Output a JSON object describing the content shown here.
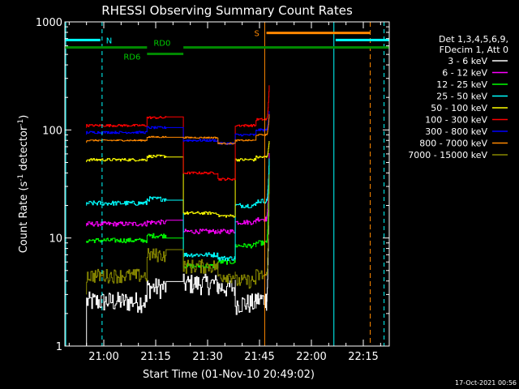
{
  "chart_data": {
    "type": "line",
    "title": "RHESSI Observing Summary Count Rates",
    "xlabel": "Start Time (01-Nov-10 20:49:02)",
    "ylabel_main": "Count Rate (s",
    "ylabel_sup": "-1",
    "ylabel_rest": " detector",
    "ylabel_sup2": "-1",
    "ylabel_end": ")",
    "y_scale": "log",
    "ylim": [
      1,
      1000
    ],
    "yticks": [
      {
        "v": 1,
        "label": "1"
      },
      {
        "v": 10,
        "label": "10"
      },
      {
        "v": 100,
        "label": "100"
      },
      {
        "v": 1000,
        "label": "1000"
      }
    ],
    "xlim": [
      -0.25,
      93.5
    ],
    "xticks": [
      {
        "t": 11,
        "label": "21:00"
      },
      {
        "t": 26,
        "label": "21:15"
      },
      {
        "t": 41,
        "label": "21:30"
      },
      {
        "t": 56,
        "label": "21:45"
      },
      {
        "t": 71,
        "label": "22:00"
      },
      {
        "t": 86,
        "label": "22:15"
      }
    ],
    "x_minor_step": 5,
    "timestamp": "17-Oct-2021 00:56",
    "legend_header": [
      "Det 1,3,4,5,6,9,",
      "FDecim 1, Att 0"
    ],
    "legend_position": "right",
    "segments": [
      [
        6.0,
        23.5
      ],
      [
        23.5,
        29.0
      ],
      [
        34.0,
        44.0
      ],
      [
        44.0,
        49.0
      ],
      [
        49.0,
        55.0
      ],
      [
        55.0,
        58.0
      ]
    ],
    "series": [
      {
        "name": "3 - 6 keV",
        "color": "#ffffff",
        "levels": [
          2.6,
          3.5,
          3.8,
          3.5,
          2.5,
          2.7
        ],
        "noise": 0.22,
        "peak": 45,
        "start": 1
      },
      {
        "name": "6 - 12 keV",
        "color": "#ff00ff",
        "levels": [
          13.5,
          14,
          11.5,
          11.5,
          14,
          15
        ],
        "noise": 0.05,
        "peak": 60
      },
      {
        "name": "12 - 25 keV",
        "color": "#00ff00",
        "levels": [
          9.5,
          10.5,
          5.5,
          6,
          8.5,
          9
        ],
        "noise": 0.05,
        "peak": 50
      },
      {
        "name": "25 - 50 keV",
        "color": "#00ffff",
        "levels": [
          21,
          23,
          7,
          6.5,
          20,
          22
        ],
        "noise": 0.05,
        "peak": 55
      },
      {
        "name": "50 - 100 keV",
        "color": "#ffff00",
        "levels": [
          53,
          57,
          17,
          16,
          53,
          56
        ],
        "noise": 0.03,
        "peak": 80
      },
      {
        "name": "100 - 300 keV",
        "color": "#ff0000",
        "levels": [
          110,
          130,
          40,
          35,
          110,
          125
        ],
        "noise": 0.025,
        "peak": 260
      },
      {
        "name": "300 - 800 keV",
        "color": "#0000ff",
        "levels": [
          95,
          105,
          80,
          75,
          90,
          100
        ],
        "noise": 0.025,
        "peak": 150
      },
      {
        "name": "800 - 7000 keV",
        "color": "#ff8800",
        "levels": [
          80,
          86,
          85,
          75,
          80,
          90
        ],
        "noise": 0.015,
        "peak": 140
      },
      {
        "name": "7000 - 15000 keV",
        "color": "#888800",
        "levels": [
          4.5,
          7,
          5.5,
          4.5,
          4,
          4.5
        ],
        "noise": 0.15,
        "peak": 40,
        "start": 3
      }
    ],
    "annotations": {
      "night": {
        "label": "N",
        "color": "#00ffff",
        "level": 680,
        "bars": [
          [
            -0.25,
            10
          ],
          [
            78,
            93.5
          ]
        ],
        "lines": [
          0,
          10.5,
          77.5,
          92
        ]
      },
      "saa": {
        "label": "S",
        "color": "#ff8800",
        "level": 790,
        "bar": [
          58,
          88
        ],
        "lines": [
          57.5,
          88
        ]
      },
      "rd0": {
        "label": "RD0",
        "color": "#008800",
        "level": 580,
        "bars": [
          [
            -0.25,
            23.5
          ],
          [
            34,
            93.5
          ]
        ]
      },
      "rd6": {
        "label": "RD6",
        "color": "#008800",
        "level": 505,
        "bar": [
          23.5,
          34
        ]
      }
    }
  }
}
